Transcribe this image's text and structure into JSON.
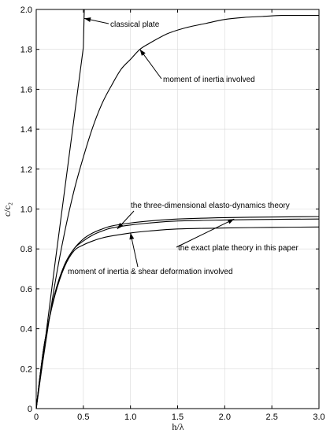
{
  "chart_data": {
    "type": "line",
    "title": "",
    "xlabel": "h/λ",
    "ylabel": "c/c₂",
    "xlim": [
      0,
      3
    ],
    "ylim": [
      0,
      2
    ],
    "grid": true,
    "x_ticks": [
      "0",
      "0.5",
      "1.0",
      "1.5",
      "2.0",
      "2.5",
      "3.0"
    ],
    "y_ticks": [
      "0",
      "0.2",
      "0.4",
      "0.6",
      "0.8",
      "1.0",
      "1.2",
      "1.4",
      "1.6",
      "1.8",
      "2.0"
    ],
    "series": [
      {
        "name": "classical plate",
        "x": [
          0,
          0.1,
          0.2,
          0.3,
          0.4,
          0.5,
          0.51
        ],
        "y": [
          0,
          0.36,
          0.73,
          1.09,
          1.45,
          1.81,
          2.0
        ]
      },
      {
        "name": "moment of inertia involved",
        "x": [
          0,
          0.05,
          0.1,
          0.2,
          0.3,
          0.4,
          0.5,
          0.6,
          0.7,
          0.8,
          0.9,
          1.0,
          1.1,
          1.2,
          1.4,
          1.6,
          1.8,
          2.0,
          2.2,
          2.4,
          2.6,
          2.8,
          3.0
        ],
        "y": [
          0,
          0.17,
          0.33,
          0.63,
          0.88,
          1.09,
          1.26,
          1.41,
          1.53,
          1.62,
          1.7,
          1.75,
          1.8,
          1.83,
          1.88,
          1.91,
          1.93,
          1.95,
          1.96,
          1.965,
          1.97,
          1.97,
          1.97
        ]
      },
      {
        "name": "the three-dimensional elasto-dynamics theory",
        "x": [
          0,
          0.05,
          0.1,
          0.2,
          0.3,
          0.4,
          0.5,
          0.6,
          0.7,
          0.8,
          1.0,
          1.2,
          1.5,
          2.0,
          2.5,
          3.0
        ],
        "y": [
          0,
          0.2,
          0.36,
          0.58,
          0.72,
          0.8,
          0.85,
          0.88,
          0.9,
          0.915,
          0.93,
          0.94,
          0.95,
          0.957,
          0.96,
          0.962
        ]
      },
      {
        "name": "the exact plate theory in this paper",
        "x": [
          0,
          0.05,
          0.1,
          0.2,
          0.3,
          0.4,
          0.5,
          0.6,
          0.7,
          0.8,
          1.0,
          1.2,
          1.5,
          2.0,
          2.5,
          3.0
        ],
        "y": [
          0,
          0.2,
          0.36,
          0.58,
          0.72,
          0.8,
          0.84,
          0.87,
          0.89,
          0.905,
          0.92,
          0.93,
          0.94,
          0.945,
          0.948,
          0.95
        ]
      },
      {
        "name": "moment of inertia & shear deformation involved",
        "x": [
          0,
          0.05,
          0.1,
          0.2,
          0.3,
          0.4,
          0.5,
          0.6,
          0.7,
          0.8,
          1.0,
          1.2,
          1.5,
          2.0,
          2.5,
          3.0
        ],
        "y": [
          0,
          0.2,
          0.36,
          0.57,
          0.71,
          0.79,
          0.82,
          0.84,
          0.855,
          0.865,
          0.88,
          0.89,
          0.9,
          0.905,
          0.908,
          0.91
        ]
      }
    ],
    "annotations": [
      {
        "text": "classical plate",
        "series": 0,
        "x": 0.51,
        "y": 1.955
      },
      {
        "text": "moment of inertia involved",
        "series": 1,
        "x": 1.1,
        "y": 1.8
      },
      {
        "text": "the three-dimensional elasto-dynamics theory",
        "series": 2,
        "x": 0.86,
        "y": 0.9
      },
      {
        "text": "the exact plate theory in this paper",
        "series": 3,
        "x": 2.1,
        "y": 0.95
      },
      {
        "text": "moment of inertia & shear deformation involved",
        "series": 4,
        "x": 1.0,
        "y": 0.88
      }
    ]
  }
}
